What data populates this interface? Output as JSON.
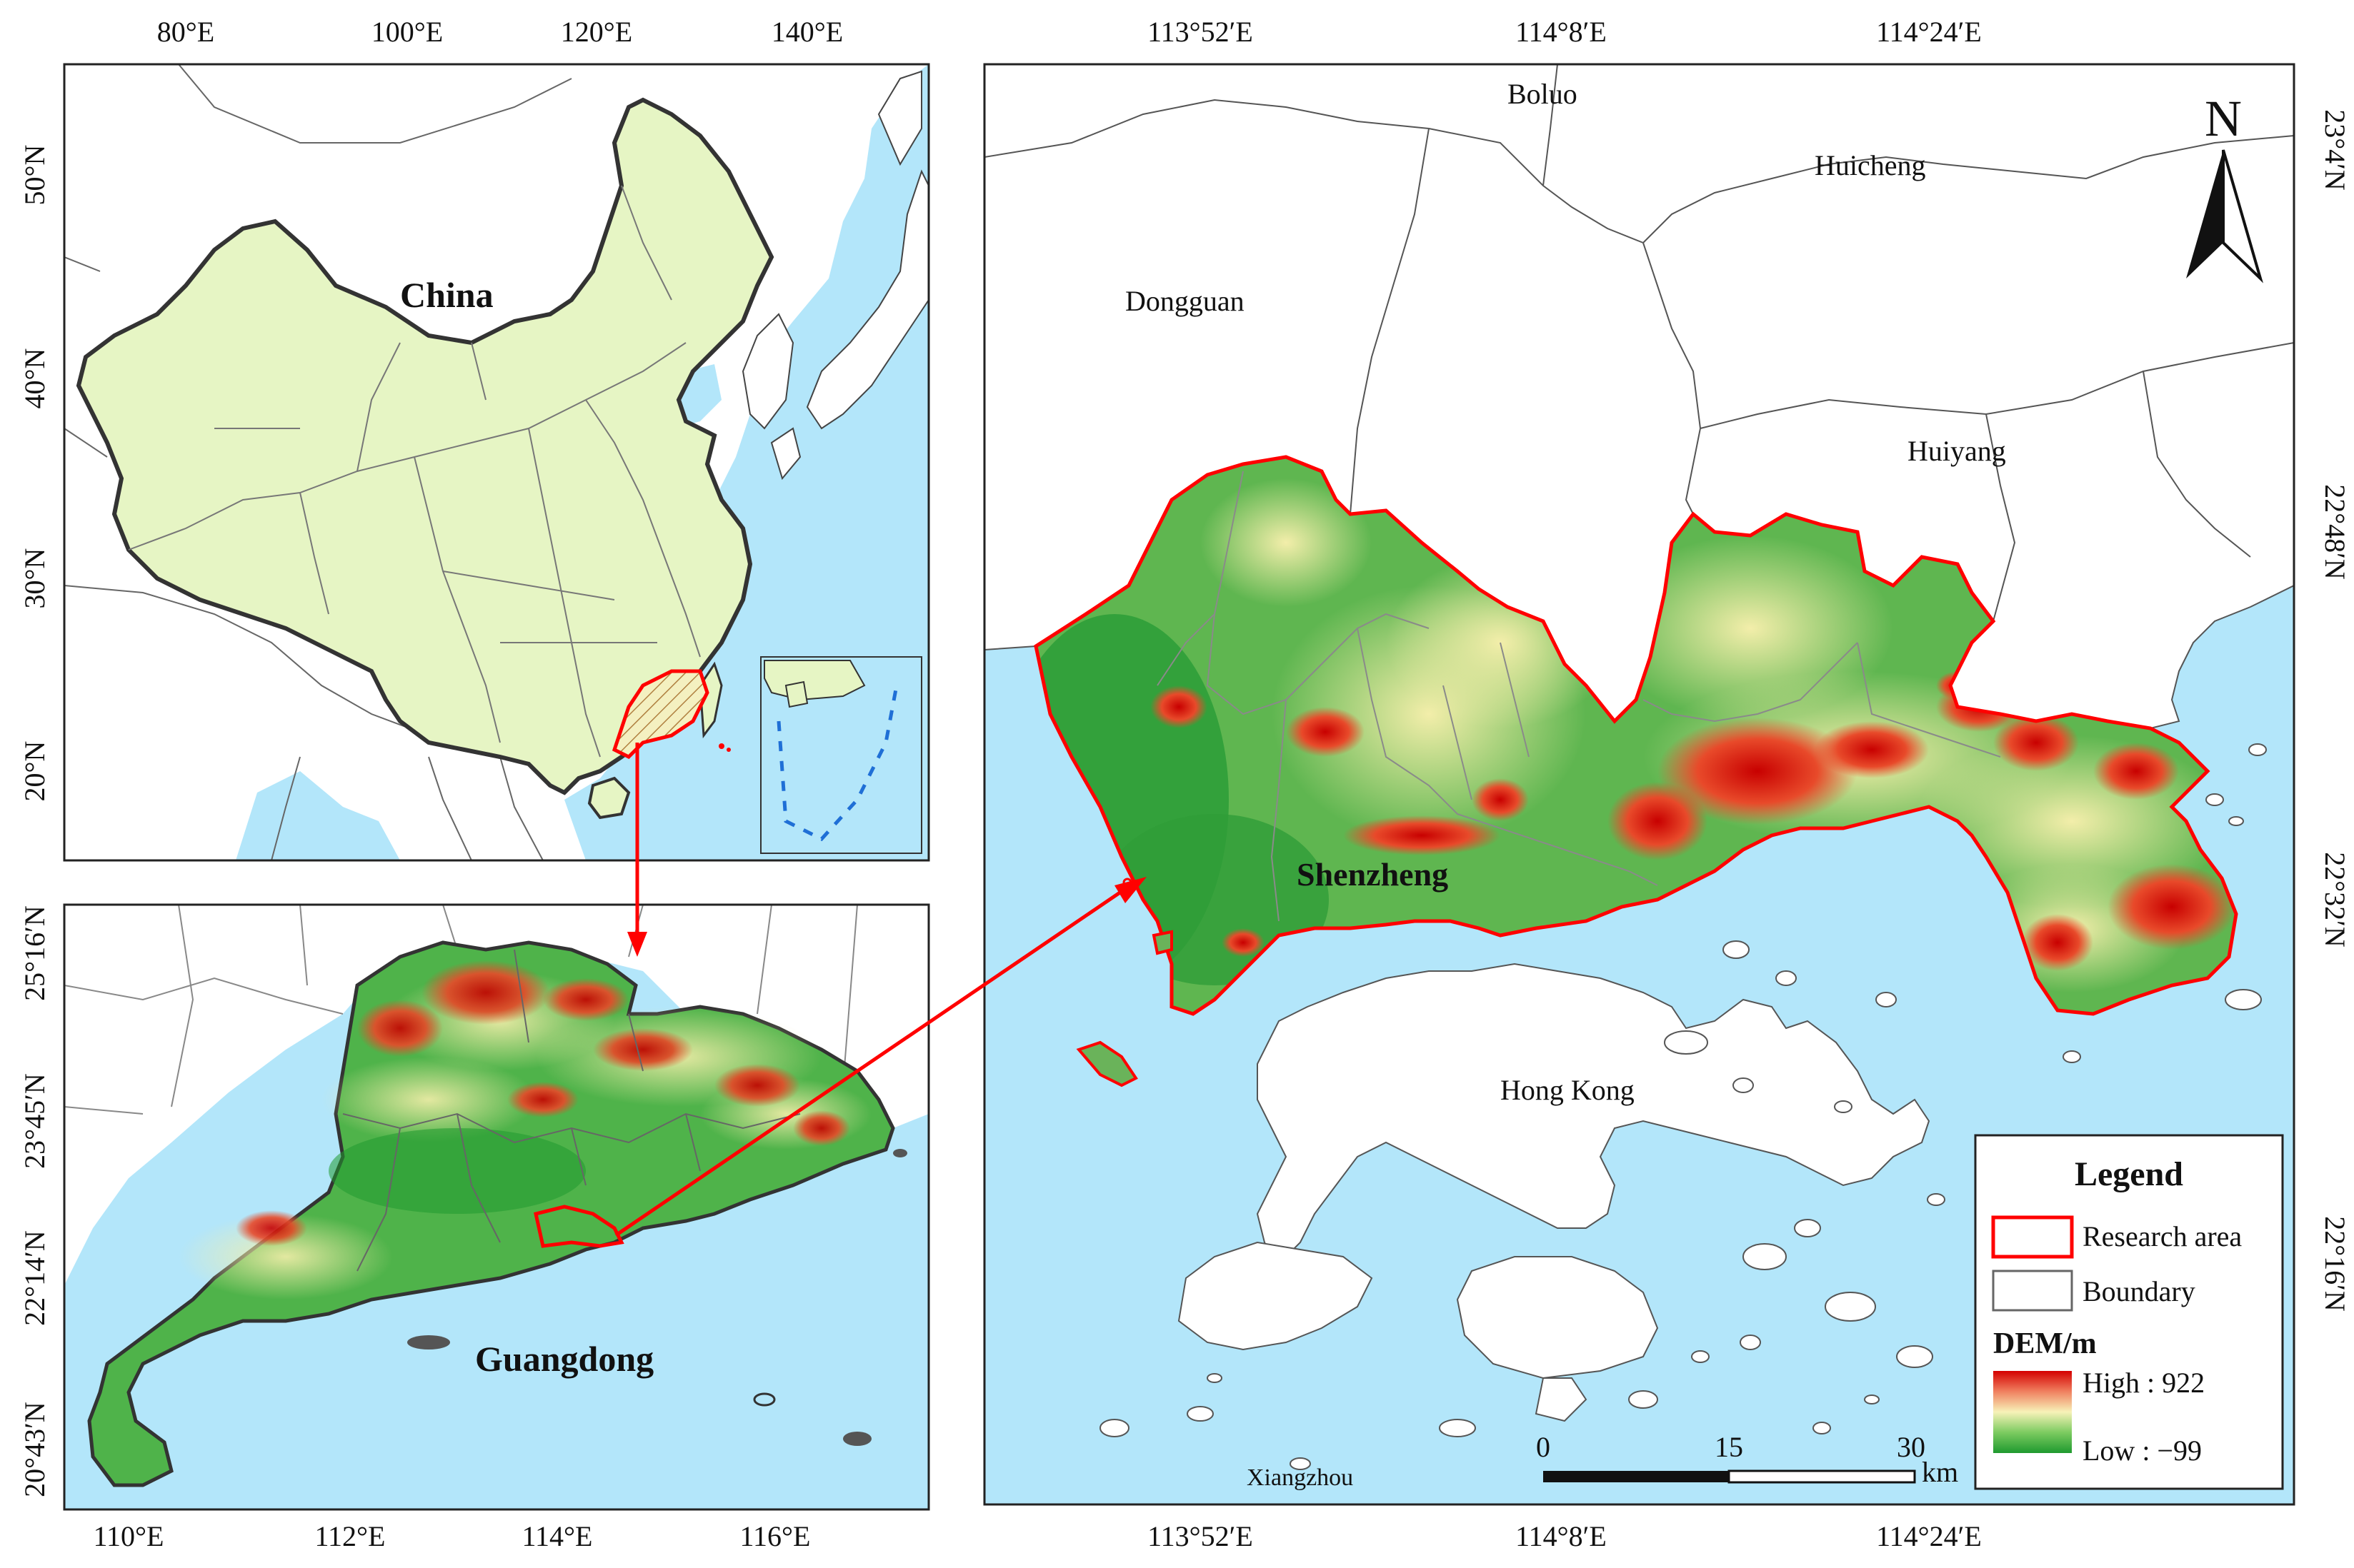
{
  "colors": {
    "sea": "#b3e6fa",
    "china_fill": "#e6f5c4",
    "research_area": "#ff0000",
    "dem_high": "#e00000",
    "dem_mid": "#f5f0b0",
    "dem_low": "#2ea02e",
    "nine_dash": "#1f6fd6"
  },
  "panel_china": {
    "lon_ticks": [
      "80°E",
      "100°E",
      "120°E",
      "140°E"
    ],
    "lat_ticks": [
      "50°N",
      "40°N",
      "30°N",
      "20°N"
    ],
    "label": "China"
  },
  "panel_guangdong": {
    "lon_ticks": [
      "110°E",
      "112°E",
      "114°E",
      "116°E"
    ],
    "lat_ticks": [
      "25°16′N",
      "23°45′N",
      "22°14′N",
      "20°43′N"
    ],
    "label": "Guangdong"
  },
  "panel_shenzhen": {
    "top_ticks": [
      "113°52′E",
      "114°8′E",
      "114°24′E"
    ],
    "bottom_ticks": [
      "113°52′E",
      "114°8′E",
      "114°24′E"
    ],
    "right_ticks": [
      "23°4′N",
      "22°48′N",
      "22°32′N",
      "22°16′N"
    ],
    "places": {
      "boluo": "Boluo",
      "huicheng": "Huicheng",
      "dongguan": "Dongguan",
      "huiyang": "Huiyang",
      "shenzhen": "Shenzheng",
      "hongkong": "Hong Kong",
      "xiangzhou": "Xiangzhou"
    },
    "north": "N",
    "scale": {
      "labels": [
        "0",
        "15",
        "30"
      ],
      "unit": "km"
    },
    "legend": {
      "title": "Legend",
      "research_area": "Research area",
      "boundary": "Boundary",
      "dem_title": "DEM/m",
      "high": "High : 922",
      "low": "Low : −99"
    }
  }
}
